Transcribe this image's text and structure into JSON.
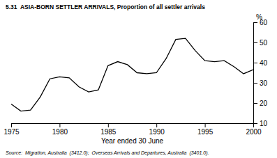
{
  "chart_data": {
    "type": "line",
    "title": "5.31  ASIA-BORN SETTLER ARRIVALS, Proportion of all settler arrivals",
    "xlabel": "Year ended 30 June",
    "ylabel": "%",
    "source": "Source:  Migration, Australia  (3412.0);  Overseas Arrivals and Departures, Australia  (3401.0).",
    "x": [
      1975,
      1976,
      1977,
      1978,
      1979,
      1980,
      1981,
      1982,
      1983,
      1984,
      1985,
      1986,
      1987,
      1988,
      1989,
      1990,
      1991,
      1992,
      1993,
      1994,
      1995,
      1996,
      1997,
      1998,
      1999,
      2000
    ],
    "values": [
      19.5,
      16.0,
      16.5,
      23.0,
      32.0,
      33.0,
      32.5,
      28.0,
      25.5,
      26.5,
      38.5,
      40.5,
      39.0,
      35.0,
      34.5,
      35.0,
      42.0,
      51.5,
      52.0,
      46.0,
      41.0,
      40.5,
      41.0,
      38.0,
      34.5,
      36.5
    ],
    "color": "#000000",
    "xlim": [
      1975,
      2000
    ],
    "ylim": [
      10,
      60
    ],
    "xticks": [
      1975,
      1980,
      1985,
      1990,
      1995,
      2000
    ],
    "yticks": [
      10,
      20,
      30,
      40,
      50,
      60
    ],
    "grid": false
  }
}
